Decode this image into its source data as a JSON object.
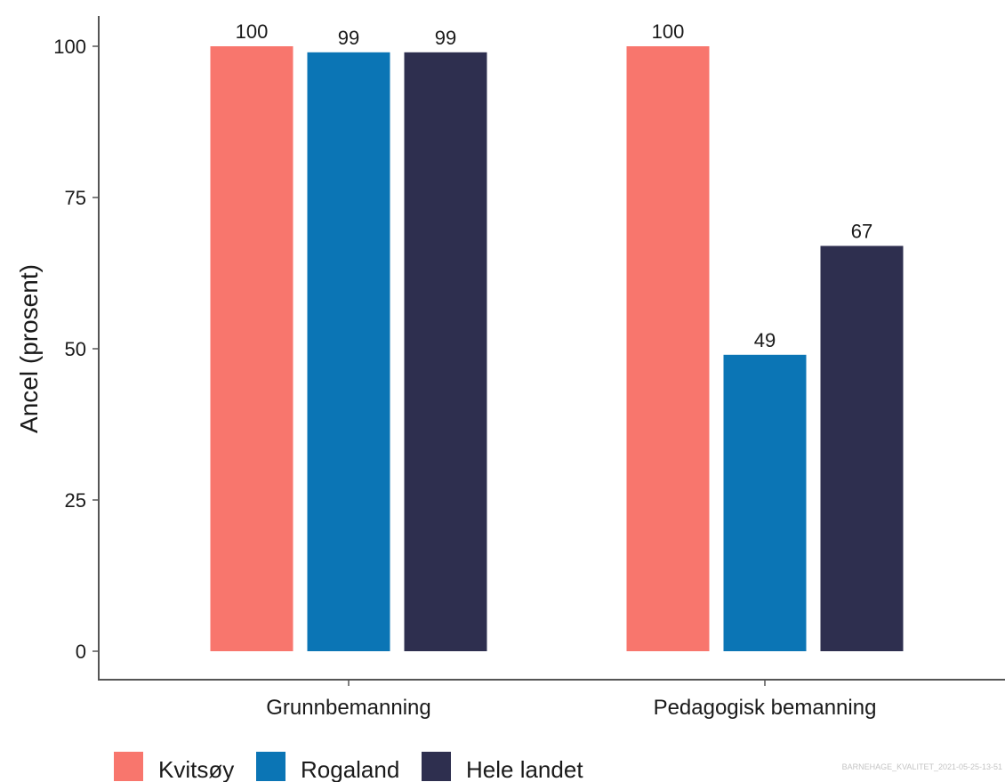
{
  "chart_data": {
    "type": "bar",
    "categories": [
      "Grunnbemanning",
      "Pedagogisk bemanning"
    ],
    "series": [
      {
        "name": "Kvitsøy",
        "color": "#f8766d",
        "values": [
          100,
          100
        ]
      },
      {
        "name": "Rogaland",
        "color": "#0b75b5",
        "values": [
          99,
          49
        ]
      },
      {
        "name": "Hele landet",
        "color": "#2e2f4f",
        "values": [
          99,
          67
        ]
      }
    ],
    "ylabel": "Ancel (prosent)",
    "xlabel": "",
    "ylim": [
      0,
      100
    ],
    "yticks": [
      0,
      25,
      50,
      75,
      100
    ],
    "ytick_labels": [
      "0",
      "25",
      "50",
      "75",
      "100"
    ],
    "data_labels": [
      [
        "100",
        "100"
      ],
      [
        "99",
        "49"
      ],
      [
        "99",
        "67"
      ]
    ],
    "grid": false,
    "legend_position": "bottom-left"
  },
  "footnote": "BARNEHAGE_KVALITET_2021-05-25-13-51"
}
